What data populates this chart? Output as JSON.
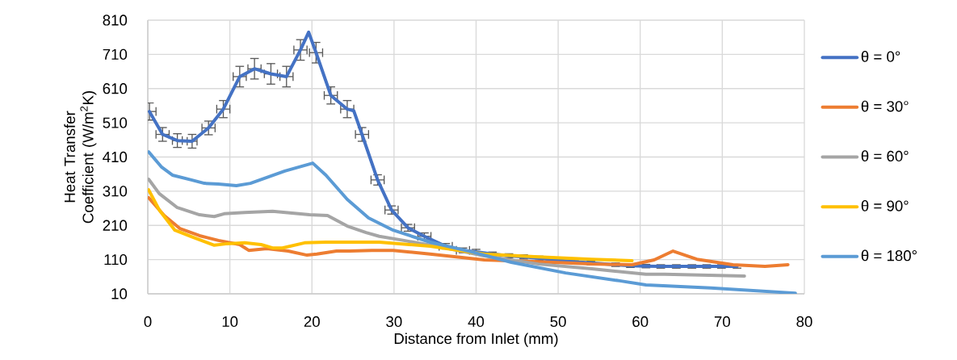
{
  "chart_data": {
    "type": "line",
    "xlabel": "Distance from Inlet (mm)",
    "ylabel": "Heat Transfer Coefficient (W/m$^{2}$K)",
    "xlim": [
      0,
      80
    ],
    "ylim": [
      10,
      810
    ],
    "xticks": [
      0,
      10,
      20,
      30,
      40,
      50,
      60,
      70,
      80
    ],
    "yticks": [
      10,
      110,
      210,
      310,
      410,
      510,
      610,
      710,
      810
    ],
    "grid": true,
    "legend": "right",
    "series": [
      {
        "name": "θ = 0°",
        "color": "#4472c4",
        "x": [
          0.2,
          1.8,
          3.6,
          5.4,
          7.4,
          9.2,
          11.2,
          13,
          15,
          16.9,
          18.6,
          19.6,
          20.5,
          22.3,
          24.3,
          25.1,
          26.1,
          28,
          29.7,
          31.7,
          33.7,
          36.3,
          38.4,
          40,
          42,
          44,
          45.8,
          47.7,
          50,
          52,
          54,
          57,
          58.8,
          60.7,
          62.5,
          64.4,
          66.3,
          68.1,
          69.9,
          71.8
        ],
        "values": [
          543,
          476,
          458,
          456,
          495,
          550,
          645,
          668,
          653,
          645,
          723,
          775,
          715,
          590,
          550,
          545,
          476,
          343,
          255,
          203,
          178,
          149,
          137,
          133,
          126,
          121,
          118,
          114,
          108,
          104,
          100,
          95,
          92,
          91,
          90,
          90,
          90,
          90,
          90,
          90
        ],
        "errors": [
          25,
          20,
          20,
          20,
          20,
          25,
          30,
          30,
          30,
          30,
          30,
          null,
          30,
          25,
          25,
          null,
          20,
          15,
          12,
          10,
          10,
          8,
          7,
          7,
          6,
          6,
          6,
          6,
          5,
          5,
          5,
          5,
          5,
          5,
          5,
          5,
          5,
          5,
          5,
          5
        ],
        "xerrors": [
          0.8,
          0.8,
          0.6,
          0.6,
          0.8,
          0.8,
          0.8,
          0.8,
          0.8,
          0.8,
          0.8,
          null,
          0.8,
          0.8,
          0.8,
          null,
          0.8,
          0.8,
          0.8,
          0.8,
          0.8,
          0.8,
          0.8,
          null,
          null,
          null,
          null,
          null,
          null,
          null,
          null,
          null,
          null,
          null,
          null,
          null,
          null,
          null,
          null,
          null
        ]
      },
      {
        "name": "θ = 30°",
        "color": "#ed7d31",
        "x": [
          0.1,
          2,
          3.9,
          6.3,
          8.6,
          11.2,
          12.3,
          14.5,
          17.1,
          19.4,
          20.6,
          23,
          24.6,
          27.3,
          29.9,
          34.4,
          41,
          47.6,
          54.1,
          59,
          61.7,
          64,
          66.9,
          71.3,
          75.2,
          78
        ],
        "values": [
          291,
          239,
          201,
          180,
          166,
          154,
          137,
          142,
          135,
          123,
          126,
          135,
          135,
          137,
          137,
          126,
          109,
          104,
          97,
          95,
          109,
          135,
          111,
          95,
          90,
          95
        ]
      },
      {
        "name": "θ = 60°",
        "color": "#a5a5a5",
        "x": [
          0.1,
          1.4,
          3.6,
          6.3,
          8.1,
          9.3,
          11.8,
          15.2,
          19.7,
          21.9,
          24.3,
          26.6,
          28.2,
          31.2,
          36.1,
          41,
          47.6,
          54.1,
          60.7,
          63,
          72.7
        ],
        "values": [
          345,
          303,
          262,
          241,
          236,
          244,
          248,
          251,
          241,
          239,
          208,
          189,
          178,
          166,
          145,
          121,
          97,
          83,
          67,
          67,
          62
        ]
      },
      {
        "name": "θ = 90°",
        "color": "#ffc000",
        "x": [
          0.1,
          1.4,
          3.3,
          5.3,
          8.1,
          9.5,
          11.8,
          13.8,
          15.2,
          16.4,
          19.1,
          21.7,
          28.2,
          34.4,
          41,
          47.6,
          54.1,
          59
        ],
        "values": [
          314,
          255,
          196,
          177,
          152,
          156,
          159,
          154,
          144,
          144,
          159,
          161,
          161,
          149,
          126,
          118,
          111,
          107
        ]
      },
      {
        "name": "θ = 180°",
        "color": "#5b9bd5",
        "x": [
          0.1,
          1.7,
          3,
          5.3,
          6.9,
          8.6,
          10.8,
          12.5,
          14.5,
          16.7,
          20.1,
          21.7,
          24.3,
          26.9,
          29.9,
          34.4,
          39.4,
          44.3,
          50.9,
          57.5,
          60.7,
          68.6,
          78.9
        ],
        "values": [
          425,
          380,
          357,
          343,
          333,
          331,
          326,
          333,
          350,
          369,
          392,
          357,
          286,
          232,
          196,
          161,
          133,
          102,
          71,
          48,
          36,
          27,
          12
        ]
      }
    ]
  }
}
